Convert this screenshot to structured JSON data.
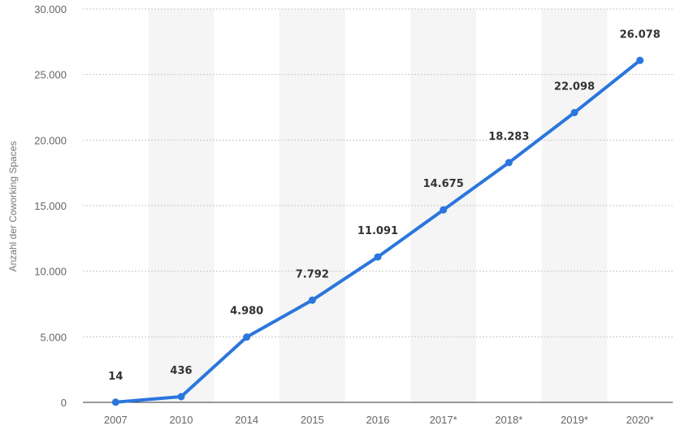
{
  "chart_data": {
    "type": "line",
    "title": "",
    "xlabel": "",
    "ylabel": "Anzahl der Coworking Spaces",
    "categories": [
      "2007",
      "2010",
      "2014",
      "2015",
      "2016",
      "2017*",
      "2018*",
      "2019*",
      "2020*"
    ],
    "series": [
      {
        "values": [
          14,
          436,
          4980,
          7792,
          11091,
          14675,
          18283,
          22098,
          26078
        ],
        "labels": [
          "14",
          "436",
          "4.980",
          "7.792",
          "11.091",
          "14.675",
          "18.283",
          "22.098",
          "26.078"
        ],
        "color": "#2a76dd"
      }
    ],
    "ylim": [
      0,
      30000
    ],
    "yticks": [
      0,
      5000,
      10000,
      15000,
      20000,
      25000,
      30000
    ],
    "ytick_labels": [
      "0",
      "5.000",
      "10.000",
      "15.000",
      "20.000",
      "25.000",
      "30.000"
    ],
    "grid": true,
    "legend": "none",
    "colors": {
      "line": "#2a76dd",
      "band": "#f5f5f5",
      "grid": "#c8c8c8",
      "axis": "#333333"
    }
  }
}
